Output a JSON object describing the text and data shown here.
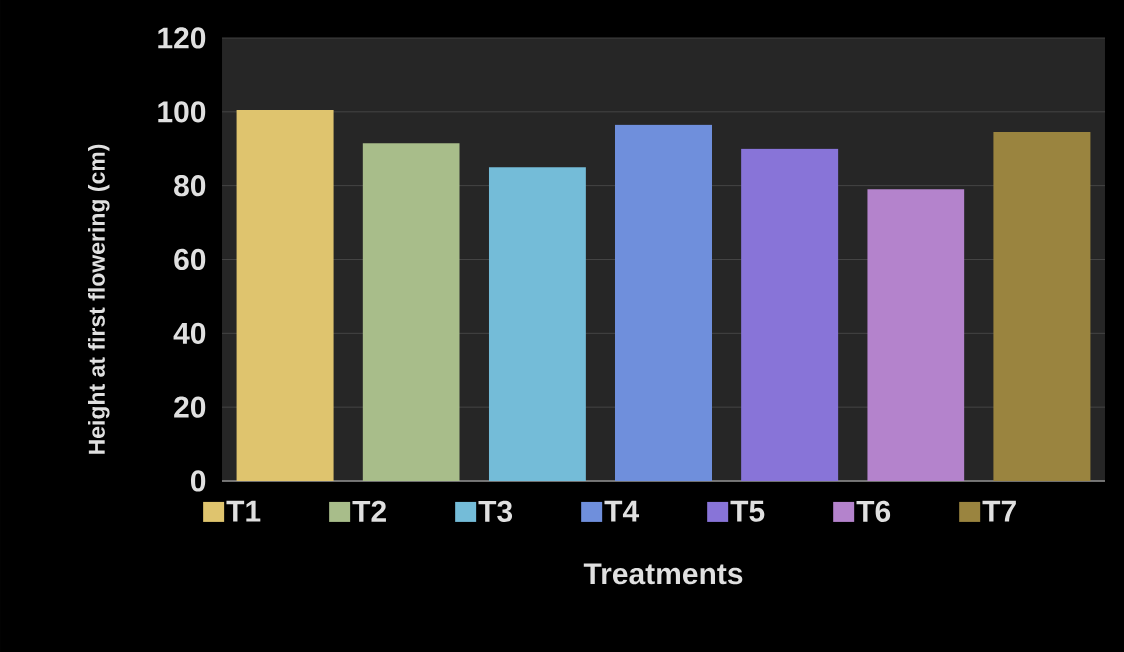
{
  "chart_data": {
    "type": "bar",
    "ylabel": "Height at first flowering (cm)",
    "xlabel": "Treatments",
    "categories": [
      null,
      null,
      null,
      null,
      null,
      null,
      null
    ],
    "series": [
      {
        "name": "T1",
        "color": "#dfc46e",
        "values": [
          100.5,
          null,
          null,
          null,
          null,
          null,
          null
        ]
      },
      {
        "name": "T2",
        "color": "#a8bd8a",
        "values": [
          null,
          91.5,
          null,
          null,
          null,
          null,
          null
        ]
      },
      {
        "name": "T3",
        "color": "#74bcd8",
        "values": [
          null,
          null,
          85,
          null,
          null,
          null,
          null
        ]
      },
      {
        "name": "T4",
        "color": "#6f8fdc",
        "values": [
          null,
          null,
          null,
          96.5,
          null,
          null,
          null
        ]
      },
      {
        "name": "T5",
        "color": "#8874d8",
        "values": [
          null,
          null,
          null,
          null,
          90,
          null,
          null
        ]
      },
      {
        "name": "T6",
        "color": "#b483cc",
        "values": [
          null,
          null,
          null,
          null,
          null,
          79,
          null
        ]
      },
      {
        "name": "T7",
        "color": "#9a843f",
        "values": [
          null,
          null,
          null,
          null,
          null,
          null,
          94.5
        ]
      }
    ],
    "ylim": [
      0,
      120
    ],
    "yticks": [
      0,
      20,
      40,
      60,
      80,
      100,
      120
    ],
    "grid": "y",
    "legend": "bottom"
  }
}
